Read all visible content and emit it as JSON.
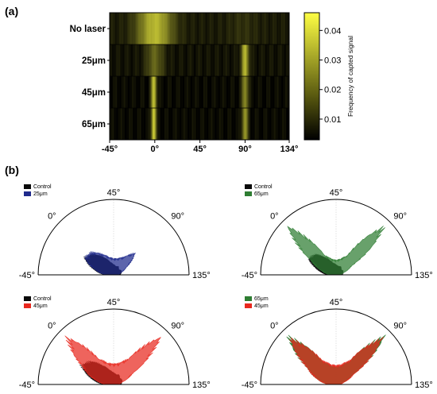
{
  "panels": {
    "a_label": "(a)",
    "b_label": "(b)"
  },
  "chart_data": [
    {
      "type": "heatmap",
      "title": "",
      "xlabel": "",
      "ylabel": "",
      "rows": [
        "No laser",
        "25μm",
        "45μm",
        "65μm"
      ],
      "x_ticks": [
        "-45°",
        "0°",
        "45°",
        "90°",
        "134°"
      ],
      "x_tick_values": [
        -45,
        0,
        45,
        90,
        134
      ],
      "xlim": [
        -45,
        134
      ],
      "colormap": {
        "low": "#000000",
        "high": "#ffff44"
      },
      "colorbar": {
        "title": "Frequency of capted signal",
        "ticks": [
          "0.01",
          "0.02",
          "0.03",
          "0.04"
        ],
        "tick_values": [
          0.01,
          0.02,
          0.03,
          0.04
        ],
        "range": [
          0.003,
          0.046
        ]
      },
      "row_profiles": [
        {
          "row": "No laser",
          "base": 0.006,
          "peaks": [
            {
              "angle": 0,
              "height": 0.026,
              "width": 12
            },
            {
              "angle": 88,
              "height": 0.003,
              "width": 10
            }
          ]
        },
        {
          "row": "25μm",
          "base": 0.005,
          "peaks": [
            {
              "angle": 0,
              "height": 0.012,
              "width": 6
            },
            {
              "angle": 90,
              "height": 0.026,
              "width": 2.5
            }
          ]
        },
        {
          "row": "45μm",
          "base": 0.004,
          "peaks": [
            {
              "angle": -1,
              "height": 0.03,
              "width": 1.8
            },
            {
              "angle": 90,
              "height": 0.02,
              "width": 2.2
            }
          ]
        },
        {
          "row": "65μm",
          "base": 0.004,
          "peaks": [
            {
              "angle": -1,
              "height": 0.033,
              "width": 1.6
            },
            {
              "angle": 90,
              "height": 0.022,
              "width": 2.0
            }
          ]
        }
      ]
    },
    {
      "type": "polar-area",
      "angle_ticks": [
        "-45°",
        "0°",
        "45°",
        "90°",
        "135°"
      ],
      "plots": [
        {
          "legend": [
            "Control",
            "25μm"
          ],
          "colors": [
            "#0a0a0a",
            "#1f2a8c"
          ],
          "series": [
            {
              "name": "Control",
              "front": [
                [
                  -45,
                  0.12
                ],
                [
                  -30,
                  0.28
                ],
                [
                  -15,
                  0.47
                ],
                [
                  0,
                  0.4
                ],
                [
                  15,
                  0.28
                ],
                [
                  30,
                  0.18
                ],
                [
                  45,
                  0.14
                ],
                [
                  60,
                  0.12
                ],
                [
                  75,
                  0.13
                ],
                [
                  90,
                  0.1
                ],
                [
                  105,
                  0.12
                ],
                [
                  120,
                  0.11
                ],
                [
                  135,
                  0.09
                ]
              ]
            },
            {
              "name": "25μm",
              "front": [
                [
                  -45,
                  0.1
                ],
                [
                  -30,
                  0.26
                ],
                [
                  -15,
                  0.46
                ],
                [
                  0,
                  0.44
                ],
                [
                  15,
                  0.33
                ],
                [
                  30,
                  0.25
                ],
                [
                  45,
                  0.22
                ],
                [
                  60,
                  0.23
                ],
                [
                  75,
                  0.28
                ],
                [
                  90,
                  0.42
                ],
                [
                  105,
                  0.2
                ],
                [
                  120,
                  0.1
                ],
                [
                  135,
                  0.05
                ]
              ]
            }
          ]
        },
        {
          "legend": [
            "Control",
            "65μm"
          ],
          "colors": [
            "#0a0a0a",
            "#2e7d32"
          ],
          "series": [
            {
              "name": "Control",
              "front": [
                [
                  -45,
                  0.12
                ],
                [
                  -30,
                  0.26
                ],
                [
                  -15,
                  0.44
                ],
                [
                  0,
                  0.4
                ],
                [
                  15,
                  0.26
                ],
                [
                  30,
                  0.17
                ],
                [
                  45,
                  0.14
                ],
                [
                  60,
                  0.12
                ],
                [
                  75,
                  0.13
                ],
                [
                  90,
                  0.1
                ],
                [
                  105,
                  0.11
                ],
                [
                  120,
                  0.1
                ],
                [
                  135,
                  0.08
                ]
              ]
            },
            {
              "name": "65μm",
              "front": [
                [
                  -45,
                  0.08
                ],
                [
                  -30,
                  0.2
                ],
                [
                  -15,
                  0.4
                ],
                [
                  0,
                  0.95
                ],
                [
                  15,
                  0.3
                ],
                [
                  30,
                  0.22
                ],
                [
                  45,
                  0.2
                ],
                [
                  60,
                  0.22
                ],
                [
                  75,
                  0.3
                ],
                [
                  90,
                  0.95
                ],
                [
                  105,
                  0.25
                ],
                [
                  120,
                  0.1
                ],
                [
                  135,
                  0.05
                ]
              ]
            }
          ]
        },
        {
          "legend": [
            "Control",
            "45μm"
          ],
          "colors": [
            "#0a0a0a",
            "#e8281e"
          ],
          "series": [
            {
              "name": "Control",
              "front": [
                [
                  -45,
                  0.14
                ],
                [
                  -30,
                  0.32
                ],
                [
                  -15,
                  0.52
                ],
                [
                  0,
                  0.45
                ],
                [
                  15,
                  0.3
                ],
                [
                  30,
                  0.2
                ],
                [
                  45,
                  0.16
                ],
                [
                  60,
                  0.14
                ],
                [
                  75,
                  0.15
                ],
                [
                  90,
                  0.12
                ],
                [
                  105,
                  0.13
                ],
                [
                  120,
                  0.12
                ],
                [
                  135,
                  0.1
                ]
              ]
            },
            {
              "name": "45μm",
              "front": [
                [
                  -45,
                  0.1
                ],
                [
                  -30,
                  0.28
                ],
                [
                  -15,
                  0.5
                ],
                [
                  0,
                  0.92
                ],
                [
                  15,
                  0.4
                ],
                [
                  30,
                  0.3
                ],
                [
                  45,
                  0.28
                ],
                [
                  60,
                  0.3
                ],
                [
                  75,
                  0.4
                ],
                [
                  90,
                  0.92
                ],
                [
                  105,
                  0.3
                ],
                [
                  120,
                  0.12
                ],
                [
                  135,
                  0.06
                ]
              ]
            }
          ]
        },
        {
          "legend": [
            "65μm",
            "45μm"
          ],
          "colors": [
            "#2e7d32",
            "#e8281e"
          ],
          "series": [
            {
              "name": "65μm",
              "front": [
                [
                  -45,
                  0.1
                ],
                [
                  -30,
                  0.26
                ],
                [
                  -15,
                  0.46
                ],
                [
                  0,
                  0.95
                ],
                [
                  15,
                  0.36
                ],
                [
                  30,
                  0.26
                ],
                [
                  45,
                  0.24
                ],
                [
                  60,
                  0.26
                ],
                [
                  75,
                  0.36
                ],
                [
                  90,
                  0.95
                ],
                [
                  105,
                  0.26
                ],
                [
                  120,
                  0.1
                ],
                [
                  135,
                  0.05
                ]
              ]
            },
            {
              "name": "45μm",
              "front": [
                [
                  -45,
                  0.1
                ],
                [
                  -30,
                  0.26
                ],
                [
                  -15,
                  0.46
                ],
                [
                  0,
                  0.9
                ],
                [
                  15,
                  0.38
                ],
                [
                  30,
                  0.28
                ],
                [
                  45,
                  0.26
                ],
                [
                  60,
                  0.28
                ],
                [
                  75,
                  0.38
                ],
                [
                  90,
                  0.9
                ],
                [
                  105,
                  0.28
                ],
                [
                  120,
                  0.11
                ],
                [
                  135,
                  0.05
                ]
              ]
            }
          ]
        }
      ]
    }
  ]
}
